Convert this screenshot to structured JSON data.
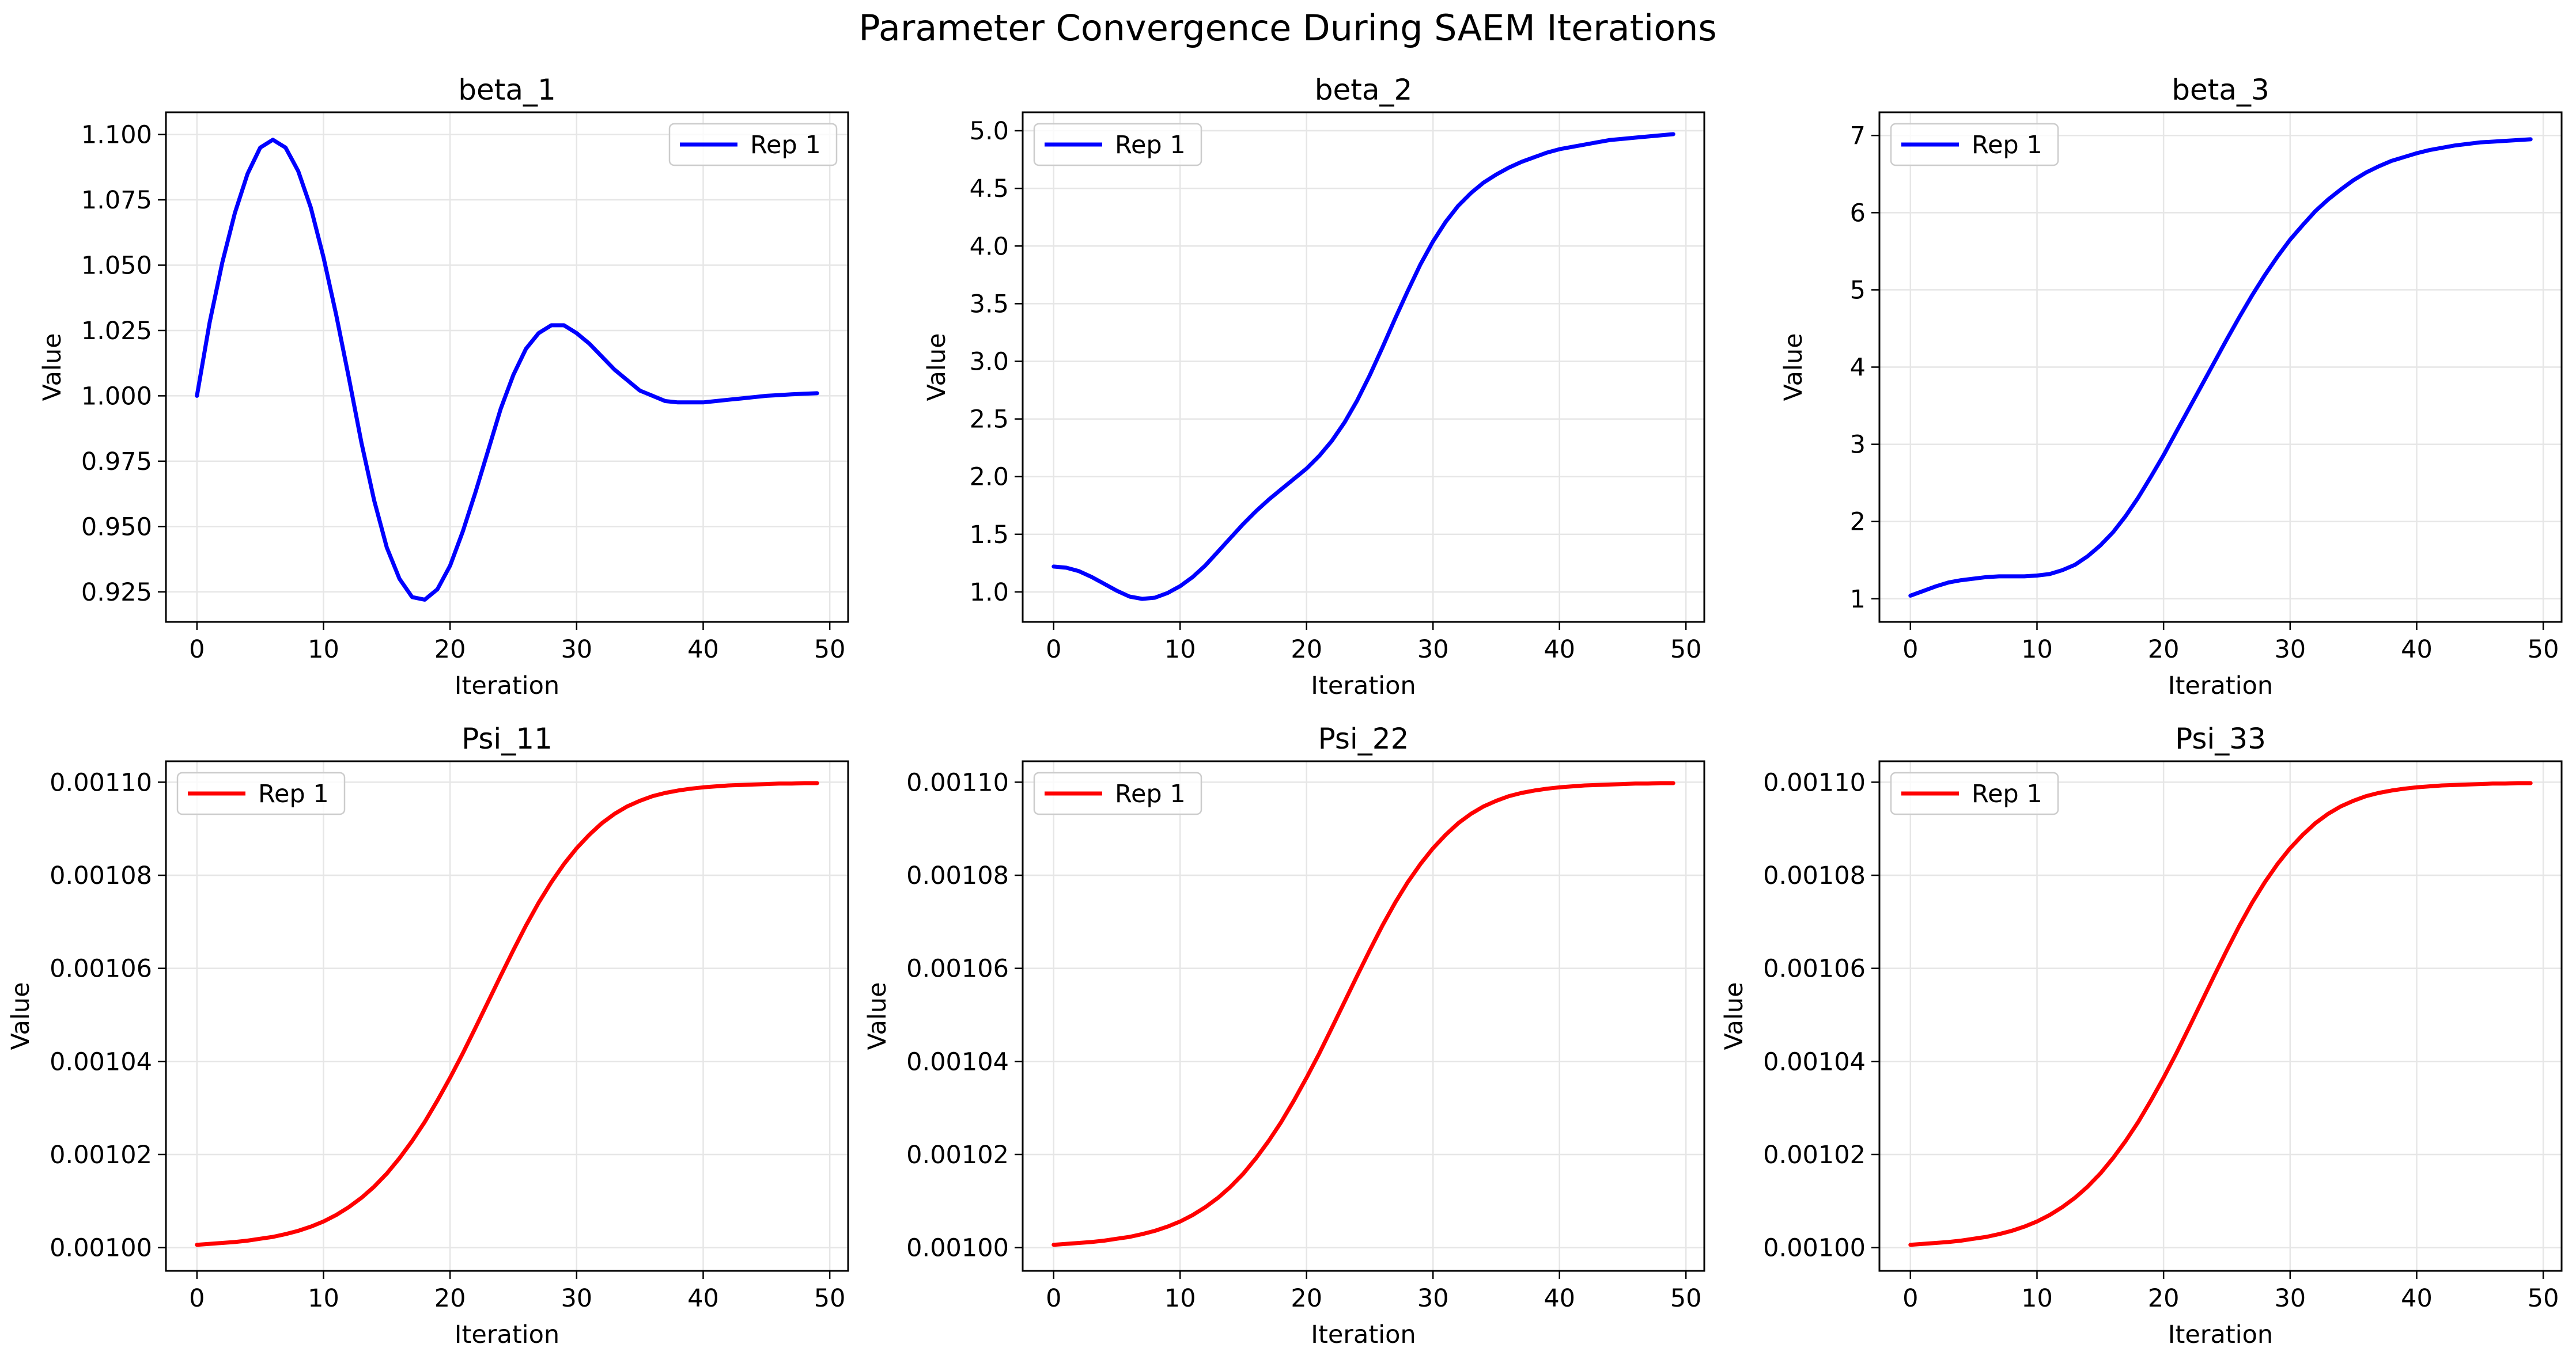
{
  "suptitle": "Parameter Convergence During SAEM Iterations",
  "chart_data": [
    {
      "type": "line",
      "title": "beta_1",
      "xlabel": "Iteration",
      "ylabel": "Value",
      "xlim": [
        -2.45,
        51.45
      ],
      "ylim": [
        0.9135,
        1.1085
      ],
      "xticks": [
        0,
        10,
        20,
        30,
        40,
        50
      ],
      "xtick_labels": [
        "0",
        "10",
        "20",
        "30",
        "40",
        "50"
      ],
      "yticks": [
        0.925,
        0.95,
        0.975,
        1.0,
        1.025,
        1.05,
        1.075,
        1.1
      ],
      "ytick_labels": [
        "0.925",
        "0.950",
        "0.975",
        "1.000",
        "1.025",
        "1.050",
        "1.075",
        "1.100"
      ],
      "grid": true,
      "legend": "top-right",
      "series": [
        {
          "name": "Rep 1",
          "color": "#0000ff",
          "x": [
            0,
            1,
            2,
            3,
            4,
            5,
            6,
            7,
            8,
            9,
            10,
            11,
            12,
            13,
            14,
            15,
            16,
            17,
            18,
            19,
            20,
            21,
            22,
            23,
            24,
            25,
            26,
            27,
            28,
            29,
            30,
            31,
            32,
            33,
            34,
            35,
            36,
            37,
            38,
            39,
            40,
            41,
            42,
            43,
            44,
            45,
            46,
            47,
            48,
            49
          ],
          "y": [
            1.0,
            1.028,
            1.051,
            1.07,
            1.085,
            1.095,
            1.098,
            1.095,
            1.086,
            1.072,
            1.053,
            1.031,
            1.007,
            0.982,
            0.96,
            0.942,
            0.93,
            0.923,
            0.922,
            0.926,
            0.935,
            0.948,
            0.963,
            0.979,
            0.995,
            1.008,
            1.018,
            1.024,
            1.027,
            1.027,
            1.024,
            1.02,
            1.015,
            1.01,
            1.006,
            1.002,
            1.0,
            0.998,
            0.9975,
            0.9975,
            0.9975,
            0.998,
            0.9985,
            0.999,
            0.9995,
            1.0,
            1.0003,
            1.0006,
            1.0008,
            1.001
          ]
        }
      ]
    },
    {
      "type": "line",
      "title": "beta_2",
      "xlabel": "Iteration",
      "ylabel": "Value",
      "xlim": [
        -2.45,
        51.45
      ],
      "ylim": [
        0.74,
        5.16
      ],
      "xticks": [
        0,
        10,
        20,
        30,
        40,
        50
      ],
      "xtick_labels": [
        "0",
        "10",
        "20",
        "30",
        "40",
        "50"
      ],
      "yticks": [
        1.0,
        1.5,
        2.0,
        2.5,
        3.0,
        3.5,
        4.0,
        4.5,
        5.0
      ],
      "ytick_labels": [
        "1.0",
        "1.5",
        "2.0",
        "2.5",
        "3.0",
        "3.5",
        "4.0",
        "4.5",
        "5.0"
      ],
      "grid": true,
      "legend": "top-left",
      "series": [
        {
          "name": "Rep 1",
          "color": "#0000ff",
          "x": [
            0,
            1,
            2,
            3,
            4,
            5,
            6,
            7,
            8,
            9,
            10,
            11,
            12,
            13,
            14,
            15,
            16,
            17,
            18,
            19,
            20,
            21,
            22,
            23,
            24,
            25,
            26,
            27,
            28,
            29,
            30,
            31,
            32,
            33,
            34,
            35,
            36,
            37,
            38,
            39,
            40,
            41,
            42,
            43,
            44,
            45,
            46,
            47,
            48,
            49
          ],
          "y": [
            1.22,
            1.21,
            1.18,
            1.13,
            1.07,
            1.01,
            0.96,
            0.94,
            0.95,
            0.99,
            1.05,
            1.13,
            1.23,
            1.35,
            1.47,
            1.59,
            1.7,
            1.8,
            1.89,
            1.98,
            2.07,
            2.18,
            2.31,
            2.47,
            2.66,
            2.88,
            3.12,
            3.37,
            3.61,
            3.84,
            4.04,
            4.21,
            4.35,
            4.46,
            4.55,
            4.62,
            4.68,
            4.73,
            4.77,
            4.81,
            4.84,
            4.86,
            4.88,
            4.9,
            4.92,
            4.93,
            4.94,
            4.95,
            4.96,
            4.97
          ]
        }
      ]
    },
    {
      "type": "line",
      "title": "beta_3",
      "xlabel": "Iteration",
      "ylabel": "Value",
      "xlim": [
        -2.45,
        51.45
      ],
      "ylim": [
        0.7,
        7.3
      ],
      "xticks": [
        0,
        10,
        20,
        30,
        40,
        50
      ],
      "xtick_labels": [
        "0",
        "10",
        "20",
        "30",
        "40",
        "50"
      ],
      "yticks": [
        1,
        2,
        3,
        4,
        5,
        6,
        7
      ],
      "ytick_labels": [
        "1",
        "2",
        "3",
        "4",
        "5",
        "6",
        "7"
      ],
      "grid": true,
      "legend": "top-left",
      "series": [
        {
          "name": "Rep 1",
          "color": "#0000ff",
          "x": [
            0,
            1,
            2,
            3,
            4,
            5,
            6,
            7,
            8,
            9,
            10,
            11,
            12,
            13,
            14,
            15,
            16,
            17,
            18,
            19,
            20,
            21,
            22,
            23,
            24,
            25,
            26,
            27,
            28,
            29,
            30,
            31,
            32,
            33,
            34,
            35,
            36,
            37,
            38,
            39,
            40,
            41,
            42,
            43,
            44,
            45,
            46,
            47,
            48,
            49
          ],
          "y": [
            1.04,
            1.1,
            1.16,
            1.21,
            1.24,
            1.26,
            1.28,
            1.29,
            1.29,
            1.29,
            1.3,
            1.32,
            1.37,
            1.44,
            1.55,
            1.69,
            1.86,
            2.07,
            2.31,
            2.58,
            2.86,
            3.16,
            3.46,
            3.76,
            4.06,
            4.36,
            4.65,
            4.93,
            5.19,
            5.43,
            5.65,
            5.84,
            6.02,
            6.17,
            6.3,
            6.42,
            6.52,
            6.6,
            6.67,
            6.72,
            6.77,
            6.81,
            6.84,
            6.87,
            6.89,
            6.91,
            6.92,
            6.93,
            6.94,
            6.95
          ]
        }
      ]
    },
    {
      "type": "line",
      "title": "Psi_11",
      "xlabel": "Iteration",
      "ylabel": "Value",
      "xlim": [
        -2.45,
        51.45
      ],
      "ylim": [
        0.000995,
        0.0011045
      ],
      "xticks": [
        0,
        10,
        20,
        30,
        40,
        50
      ],
      "xtick_labels": [
        "0",
        "10",
        "20",
        "30",
        "40",
        "50"
      ],
      "yticks": [
        0.001,
        0.00102,
        0.00104,
        0.00106,
        0.00108,
        0.0011
      ],
      "ytick_labels": [
        "0.00100",
        "0.00102",
        "0.00104",
        "0.00106",
        "0.00108",
        "0.00110"
      ],
      "grid": true,
      "legend": "top-left",
      "series": [
        {
          "name": "Rep 1",
          "color": "#ff0000",
          "x": [
            0,
            1,
            2,
            3,
            4,
            5,
            6,
            7,
            8,
            9,
            10,
            11,
            12,
            13,
            14,
            15,
            16,
            17,
            18,
            19,
            20,
            21,
            22,
            23,
            24,
            25,
            26,
            27,
            28,
            29,
            30,
            31,
            32,
            33,
            34,
            35,
            36,
            37,
            38,
            39,
            40,
            41,
            42,
            43,
            44,
            45,
            46,
            47,
            48,
            49
          ],
          "y": [
            0.0010006,
            0.0010008,
            0.001001,
            0.0010012,
            0.0010015,
            0.0010019,
            0.0010023,
            0.0010029,
            0.0010036,
            0.0010045,
            0.0010056,
            0.001007,
            0.0010087,
            0.0010107,
            0.0010131,
            0.0010159,
            0.0010192,
            0.0010229,
            0.001027,
            0.0010316,
            0.0010365,
            0.0010417,
            0.0010472,
            0.0010528,
            0.0010584,
            0.0010639,
            0.0010692,
            0.0010741,
            0.0010785,
            0.0010824,
            0.0010858,
            0.0010887,
            0.0010912,
            0.0010932,
            0.0010948,
            0.001096,
            0.001097,
            0.0010977,
            0.0010982,
            0.0010986,
            0.0010989,
            0.0010991,
            0.0010993,
            0.0010994,
            0.0010995,
            0.0010996,
            0.0010997,
            0.0010997,
            0.0010998,
            0.0010998
          ]
        }
      ]
    },
    {
      "type": "line",
      "title": "Psi_22",
      "xlabel": "Iteration",
      "ylabel": "Value",
      "xlim": [
        -2.45,
        51.45
      ],
      "ylim": [
        0.000995,
        0.0011045
      ],
      "xticks": [
        0,
        10,
        20,
        30,
        40,
        50
      ],
      "xtick_labels": [
        "0",
        "10",
        "20",
        "30",
        "40",
        "50"
      ],
      "yticks": [
        0.001,
        0.00102,
        0.00104,
        0.00106,
        0.00108,
        0.0011
      ],
      "ytick_labels": [
        "0.00100",
        "0.00102",
        "0.00104",
        "0.00106",
        "0.00108",
        "0.00110"
      ],
      "grid": true,
      "legend": "top-left",
      "series": [
        {
          "name": "Rep 1",
          "color": "#ff0000",
          "x": [
            0,
            1,
            2,
            3,
            4,
            5,
            6,
            7,
            8,
            9,
            10,
            11,
            12,
            13,
            14,
            15,
            16,
            17,
            18,
            19,
            20,
            21,
            22,
            23,
            24,
            25,
            26,
            27,
            28,
            29,
            30,
            31,
            32,
            33,
            34,
            35,
            36,
            37,
            38,
            39,
            40,
            41,
            42,
            43,
            44,
            45,
            46,
            47,
            48,
            49
          ],
          "y": [
            0.0010006,
            0.0010008,
            0.001001,
            0.0010012,
            0.0010015,
            0.0010019,
            0.0010023,
            0.0010029,
            0.0010036,
            0.0010045,
            0.0010056,
            0.001007,
            0.0010087,
            0.0010107,
            0.0010131,
            0.0010159,
            0.0010192,
            0.0010229,
            0.001027,
            0.0010316,
            0.0010365,
            0.0010417,
            0.0010472,
            0.0010528,
            0.0010584,
            0.0010639,
            0.0010692,
            0.0010741,
            0.0010785,
            0.0010824,
            0.0010858,
            0.0010887,
            0.0010912,
            0.0010932,
            0.0010948,
            0.001096,
            0.001097,
            0.0010977,
            0.0010982,
            0.0010986,
            0.0010989,
            0.0010991,
            0.0010993,
            0.0010994,
            0.0010995,
            0.0010996,
            0.0010997,
            0.0010997,
            0.0010998,
            0.0010998
          ]
        }
      ]
    },
    {
      "type": "line",
      "title": "Psi_33",
      "xlabel": "Iteration",
      "ylabel": "Value",
      "xlim": [
        -2.45,
        51.45
      ],
      "ylim": [
        0.000995,
        0.0011045
      ],
      "xticks": [
        0,
        10,
        20,
        30,
        40,
        50
      ],
      "xtick_labels": [
        "0",
        "10",
        "20",
        "30",
        "40",
        "50"
      ],
      "yticks": [
        0.001,
        0.00102,
        0.00104,
        0.00106,
        0.00108,
        0.0011
      ],
      "ytick_labels": [
        "0.00100",
        "0.00102",
        "0.00104",
        "0.00106",
        "0.00108",
        "0.00110"
      ],
      "grid": true,
      "legend": "top-left",
      "series": [
        {
          "name": "Rep 1",
          "color": "#ff0000",
          "x": [
            0,
            1,
            2,
            3,
            4,
            5,
            6,
            7,
            8,
            9,
            10,
            11,
            12,
            13,
            14,
            15,
            16,
            17,
            18,
            19,
            20,
            21,
            22,
            23,
            24,
            25,
            26,
            27,
            28,
            29,
            30,
            31,
            32,
            33,
            34,
            35,
            36,
            37,
            38,
            39,
            40,
            41,
            42,
            43,
            44,
            45,
            46,
            47,
            48,
            49
          ],
          "y": [
            0.0010006,
            0.0010008,
            0.001001,
            0.0010012,
            0.0010015,
            0.0010019,
            0.0010023,
            0.0010029,
            0.0010036,
            0.0010045,
            0.0010056,
            0.001007,
            0.0010087,
            0.0010107,
            0.0010131,
            0.0010159,
            0.0010192,
            0.0010229,
            0.001027,
            0.0010316,
            0.0010365,
            0.0010417,
            0.0010472,
            0.0010528,
            0.0010584,
            0.0010639,
            0.0010692,
            0.0010741,
            0.0010785,
            0.0010824,
            0.0010858,
            0.0010887,
            0.0010912,
            0.0010932,
            0.0010948,
            0.001096,
            0.001097,
            0.0010977,
            0.0010982,
            0.0010986,
            0.0010989,
            0.0010991,
            0.0010993,
            0.0010994,
            0.0010995,
            0.0010996,
            0.0010997,
            0.0010997,
            0.0010998,
            0.0010998
          ]
        }
      ]
    }
  ]
}
